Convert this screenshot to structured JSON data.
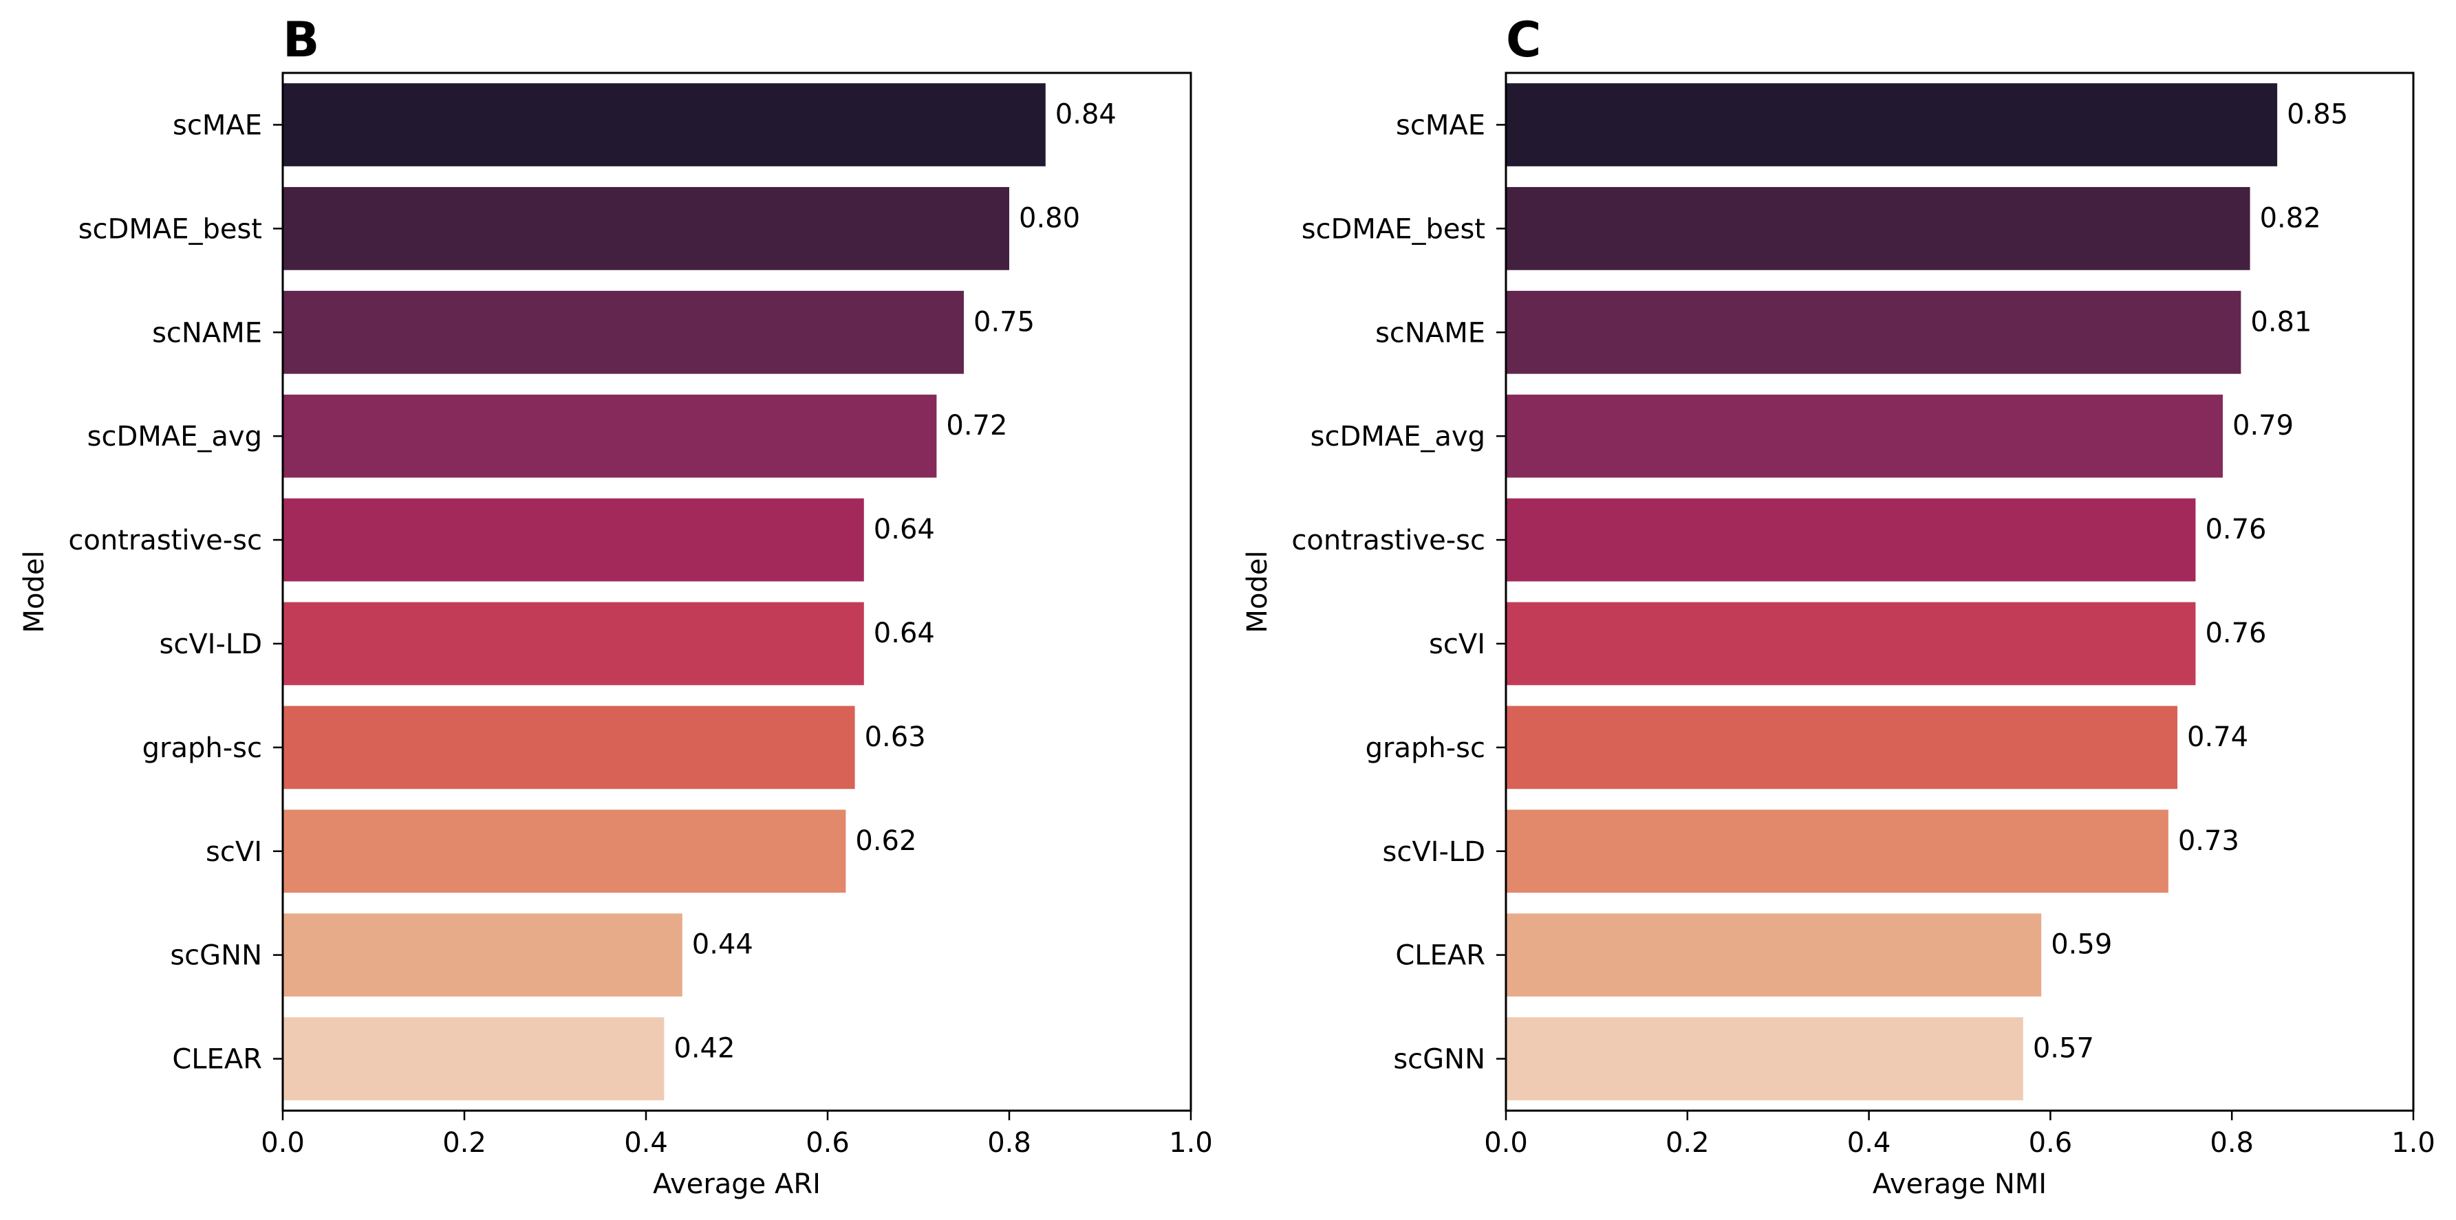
{
  "chart_data": [
    {
      "type": "bar",
      "orientation": "horizontal",
      "panel_label": "B",
      "categories": [
        "scMAE",
        "scDMAE_best",
        "scNAME",
        "scDMAE_avg",
        "contrastive-sc",
        "scVI-LD",
        "graph-sc",
        "scVI",
        "scGNN",
        "CLEAR"
      ],
      "values": [
        0.84,
        0.8,
        0.75,
        0.72,
        0.64,
        0.64,
        0.63,
        0.62,
        0.44,
        0.42
      ],
      "value_labels": [
        "0.84",
        "0.80",
        "0.75",
        "0.72",
        "0.64",
        "0.64",
        "0.63",
        "0.62",
        "0.44",
        "0.42"
      ],
      "xlabel": "Average ARI",
      "ylabel": "Model",
      "xlim": [
        0,
        1.0
      ],
      "xticks": [
        0,
        0.2,
        0.4,
        0.6,
        0.8,
        1.0
      ],
      "xtick_labels": [
        "0.0",
        "0.2",
        "0.4",
        "0.6",
        "0.8",
        "1.0"
      ],
      "grid": false
    },
    {
      "type": "bar",
      "orientation": "horizontal",
      "panel_label": "C",
      "categories": [
        "scMAE",
        "scDMAE_best",
        "scNAME",
        "scDMAE_avg",
        "contrastive-sc",
        "scVI",
        "graph-sc",
        "scVI-LD",
        "CLEAR",
        "scGNN"
      ],
      "values": [
        0.85,
        0.82,
        0.81,
        0.79,
        0.76,
        0.76,
        0.74,
        0.73,
        0.59,
        0.57
      ],
      "value_labels": [
        "0.85",
        "0.82",
        "0.81",
        "0.79",
        "0.76",
        "0.76",
        "0.74",
        "0.73",
        "0.59",
        "0.57"
      ],
      "xlabel": "Average NMI",
      "ylabel": "Model",
      "xlim": [
        0,
        1.0
      ],
      "xticks": [
        0,
        0.2,
        0.4,
        0.6,
        0.8,
        1.0
      ],
      "xtick_labels": [
        "0.0",
        "0.2",
        "0.4",
        "0.6",
        "0.8",
        "1.0"
      ],
      "grid": false
    }
  ],
  "palette": [
    "#221830",
    "#432040",
    "#63264f",
    "#852a5a",
    "#a3295a",
    "#c33c57",
    "#d86256",
    "#e2886b",
    "#e8ab8a",
    "#efcbb4"
  ]
}
